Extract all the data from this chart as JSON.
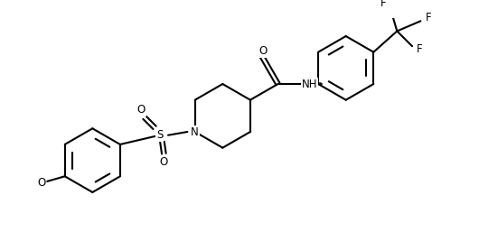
{
  "figsize": [
    5.3,
    2.78
  ],
  "dpi": 100,
  "lw": 1.5,
  "fs": 8.5,
  "xlim": [
    0,
    5.3
  ],
  "ylim": [
    0,
    2.78
  ]
}
